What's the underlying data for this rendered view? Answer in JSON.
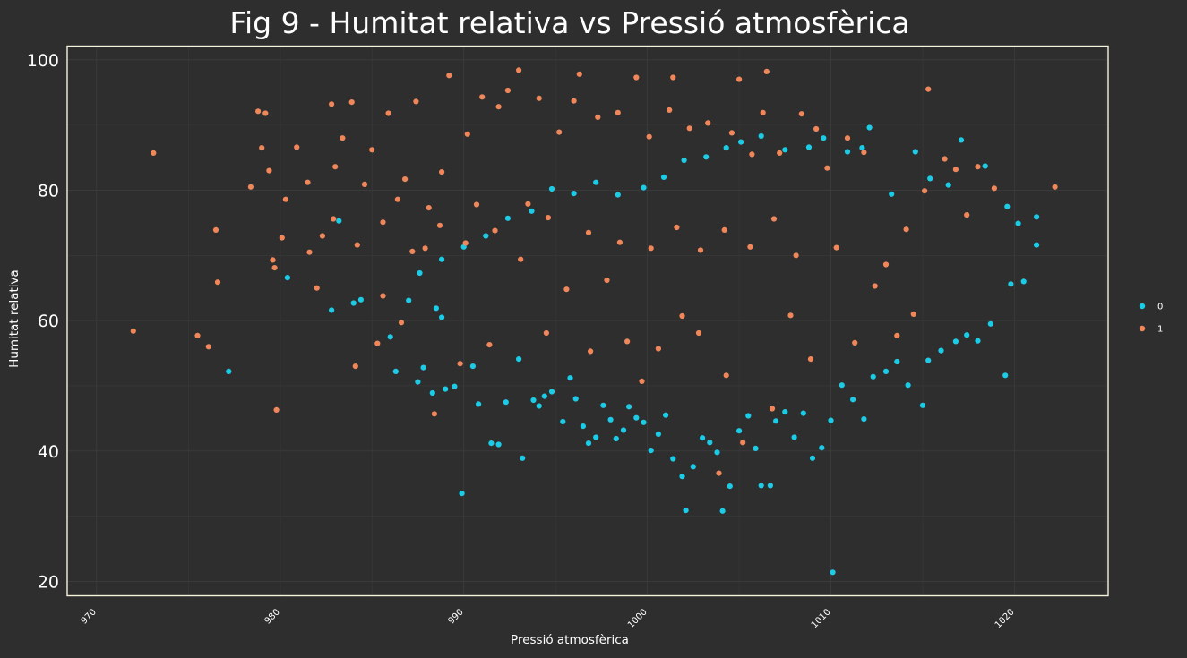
{
  "colors": {
    "background": "#2e2e2e",
    "panel_border": "#f5f3dc",
    "grid": "#3a3a3a",
    "text": "#ffffff",
    "series_0": "#1ccbe6",
    "series_1": "#f0875a"
  },
  "chart_data": {
    "type": "scatter",
    "title": "Fig 9 - Humitat relativa vs Pressió atmosfèrica",
    "xlabel": "Pressió atmosfèrica",
    "ylabel": "Humitat relativa",
    "xlim": [
      968.4,
      1025.1
    ],
    "ylim": [
      17.8,
      102.1
    ],
    "x_ticks": [
      970,
      980,
      990,
      1000,
      1010,
      1020
    ],
    "y_ticks": [
      20,
      40,
      60,
      80,
      100
    ],
    "grid": true,
    "legend_position": "right",
    "series": [
      {
        "name": "0",
        "color": "#1ccbe6",
        "points": [
          [
            977.2,
            52.2
          ],
          [
            980.4,
            66.6
          ],
          [
            982.8,
            61.6
          ],
          [
            983.2,
            75.3
          ],
          [
            984.0,
            62.7
          ],
          [
            984.4,
            63.2
          ],
          [
            986.0,
            57.5
          ],
          [
            986.3,
            52.2
          ],
          [
            987.0,
            63.1
          ],
          [
            987.5,
            50.6
          ],
          [
            987.8,
            52.8
          ],
          [
            988.3,
            48.9
          ],
          [
            988.5,
            61.9
          ],
          [
            988.8,
            60.5
          ],
          [
            989.0,
            49.5
          ],
          [
            989.5,
            49.9
          ],
          [
            989.9,
            33.5
          ],
          [
            990.5,
            53.0
          ],
          [
            990.8,
            47.2
          ],
          [
            991.5,
            41.2
          ],
          [
            991.9,
            41.0
          ],
          [
            992.3,
            47.5
          ],
          [
            993.0,
            54.1
          ],
          [
            993.2,
            38.9
          ],
          [
            993.8,
            47.8
          ],
          [
            994.1,
            46.9
          ],
          [
            994.4,
            48.4
          ],
          [
            994.8,
            49.1
          ],
          [
            995.4,
            44.5
          ],
          [
            995.8,
            51.2
          ],
          [
            996.1,
            48.0
          ],
          [
            996.5,
            43.8
          ],
          [
            996.8,
            41.2
          ],
          [
            997.2,
            42.1
          ],
          [
            997.6,
            47.0
          ],
          [
            998.0,
            44.8
          ],
          [
            998.3,
            41.9
          ],
          [
            998.7,
            43.2
          ],
          [
            999.0,
            46.8
          ],
          [
            999.4,
            45.1
          ],
          [
            999.8,
            44.4
          ],
          [
            1000.2,
            40.1
          ],
          [
            1000.6,
            42.6
          ],
          [
            1001.0,
            45.5
          ],
          [
            1001.4,
            38.8
          ],
          [
            1001.9,
            36.1
          ],
          [
            1002.1,
            30.9
          ],
          [
            1002.5,
            37.6
          ],
          [
            1003.0,
            42.0
          ],
          [
            1003.4,
            41.3
          ],
          [
            1003.8,
            39.8
          ],
          [
            1004.1,
            30.8
          ],
          [
            1004.5,
            34.6
          ],
          [
            1005.0,
            43.1
          ],
          [
            1005.5,
            45.4
          ],
          [
            1005.9,
            40.4
          ],
          [
            1006.2,
            34.7
          ],
          [
            1006.7,
            34.7
          ],
          [
            1007.0,
            44.6
          ],
          [
            1007.5,
            46.0
          ],
          [
            1008.0,
            42.1
          ],
          [
            1008.5,
            45.8
          ],
          [
            1009.0,
            38.9
          ],
          [
            1009.5,
            40.5
          ],
          [
            1010.0,
            44.7
          ],
          [
            1010.1,
            21.4
          ],
          [
            1010.6,
            50.1
          ],
          [
            1011.2,
            47.9
          ],
          [
            1011.8,
            44.9
          ],
          [
            1012.3,
            51.4
          ],
          [
            1013.0,
            52.2
          ],
          [
            1013.6,
            53.7
          ],
          [
            1014.2,
            50.1
          ],
          [
            1015.0,
            47.0
          ],
          [
            1015.3,
            53.9
          ],
          [
            1016.0,
            55.4
          ],
          [
            1016.8,
            56.8
          ],
          [
            1017.4,
            57.8
          ],
          [
            1018.0,
            56.9
          ],
          [
            1018.7,
            59.5
          ],
          [
            1019.5,
            51.6
          ],
          [
            1019.8,
            65.6
          ],
          [
            1020.5,
            66.0
          ],
          [
            1021.2,
            75.9
          ],
          [
            1021.2,
            71.6
          ],
          [
            1020.2,
            74.9
          ],
          [
            1019.6,
            77.5
          ],
          [
            1018.4,
            83.7
          ],
          [
            1017.1,
            87.7
          ],
          [
            1016.4,
            80.8
          ],
          [
            1015.4,
            81.8
          ],
          [
            1014.6,
            85.9
          ],
          [
            1013.3,
            79.4
          ],
          [
            1012.1,
            89.6
          ],
          [
            1011.7,
            86.5
          ],
          [
            1010.9,
            85.9
          ],
          [
            1009.6,
            88.0
          ],
          [
            1008.8,
            86.6
          ],
          [
            1007.5,
            86.2
          ],
          [
            1006.2,
            88.3
          ],
          [
            1005.1,
            87.4
          ],
          [
            1004.3,
            86.5
          ],
          [
            1003.2,
            85.1
          ],
          [
            1002.0,
            84.6
          ],
          [
            1000.9,
            82.0
          ],
          [
            999.8,
            80.4
          ],
          [
            998.4,
            79.3
          ],
          [
            997.2,
            81.2
          ],
          [
            996.0,
            79.5
          ],
          [
            994.8,
            80.2
          ],
          [
            993.7,
            76.8
          ],
          [
            992.4,
            75.7
          ],
          [
            991.2,
            73.0
          ],
          [
            990.0,
            71.3
          ],
          [
            988.8,
            69.4
          ],
          [
            987.6,
            67.3
          ]
        ]
      },
      {
        "name": "1",
        "color": "#f0875a",
        "points": [
          [
            972.0,
            58.4
          ],
          [
            973.1,
            85.7
          ],
          [
            975.5,
            57.7
          ],
          [
            976.1,
            56.0
          ],
          [
            976.5,
            73.9
          ],
          [
            976.6,
            65.9
          ],
          [
            978.4,
            80.5
          ],
          [
            978.8,
            92.1
          ],
          [
            979.0,
            86.5
          ],
          [
            979.2,
            91.8
          ],
          [
            979.4,
            83.0
          ],
          [
            979.6,
            69.3
          ],
          [
            979.7,
            68.1
          ],
          [
            979.8,
            46.3
          ],
          [
            980.1,
            72.7
          ],
          [
            980.3,
            78.6
          ],
          [
            980.9,
            86.6
          ],
          [
            981.5,
            81.2
          ],
          [
            982.0,
            65.0
          ],
          [
            982.3,
            73.0
          ],
          [
            982.8,
            93.2
          ],
          [
            983.0,
            83.6
          ],
          [
            983.4,
            88.0
          ],
          [
            983.9,
            93.5
          ],
          [
            984.1,
            53.0
          ],
          [
            984.6,
            80.9
          ],
          [
            985.0,
            86.2
          ],
          [
            985.3,
            56.5
          ],
          [
            985.6,
            63.8
          ],
          [
            985.9,
            91.8
          ],
          [
            986.4,
            78.6
          ],
          [
            986.6,
            59.7
          ],
          [
            986.8,
            81.7
          ],
          [
            987.4,
            93.6
          ],
          [
            987.9,
            71.1
          ],
          [
            988.1,
            77.3
          ],
          [
            988.4,
            45.7
          ],
          [
            988.8,
            82.8
          ],
          [
            989.2,
            97.6
          ],
          [
            989.8,
            53.4
          ],
          [
            990.2,
            88.6
          ],
          [
            990.7,
            77.8
          ],
          [
            991.0,
            94.3
          ],
          [
            991.4,
            56.3
          ],
          [
            991.9,
            92.8
          ],
          [
            992.4,
            95.3
          ],
          [
            993.0,
            98.4
          ],
          [
            993.5,
            77.9
          ],
          [
            994.1,
            94.1
          ],
          [
            994.5,
            58.1
          ],
          [
            995.2,
            88.9
          ],
          [
            995.6,
            64.8
          ],
          [
            996.0,
            93.7
          ],
          [
            996.3,
            97.8
          ],
          [
            996.9,
            55.3
          ],
          [
            997.3,
            91.2
          ],
          [
            997.8,
            66.2
          ],
          [
            998.4,
            91.9
          ],
          [
            998.9,
            56.8
          ],
          [
            999.4,
            97.3
          ],
          [
            999.7,
            50.7
          ],
          [
            1000.1,
            88.2
          ],
          [
            1000.6,
            55.7
          ],
          [
            1001.2,
            92.3
          ],
          [
            1001.4,
            97.3
          ],
          [
            1001.9,
            60.7
          ],
          [
            1002.3,
            89.5
          ],
          [
            1002.8,
            58.1
          ],
          [
            1003.3,
            90.3
          ],
          [
            1003.9,
            36.6
          ],
          [
            1004.3,
            51.6
          ],
          [
            1004.6,
            88.8
          ],
          [
            1005.0,
            97.0
          ],
          [
            1005.2,
            41.3
          ],
          [
            1005.7,
            85.5
          ],
          [
            1006.3,
            91.9
          ],
          [
            1006.5,
            98.2
          ],
          [
            1006.8,
            46.5
          ],
          [
            1007.2,
            85.7
          ],
          [
            1007.8,
            60.8
          ],
          [
            1008.4,
            91.7
          ],
          [
            1008.9,
            54.1
          ],
          [
            1009.2,
            89.4
          ],
          [
            1009.8,
            83.4
          ],
          [
            1010.3,
            71.2
          ],
          [
            1010.9,
            88.0
          ],
          [
            1011.3,
            56.6
          ],
          [
            1011.8,
            85.8
          ],
          [
            1012.4,
            65.3
          ],
          [
            1013.0,
            68.6
          ],
          [
            1013.6,
            57.7
          ],
          [
            1014.1,
            74.0
          ],
          [
            1014.5,
            61.0
          ],
          [
            1015.1,
            79.9
          ],
          [
            1015.3,
            95.5
          ],
          [
            1016.2,
            84.8
          ],
          [
            1016.8,
            83.2
          ],
          [
            1017.4,
            76.2
          ],
          [
            1018.0,
            83.6
          ],
          [
            1018.9,
            80.3
          ],
          [
            1022.2,
            80.5
          ],
          [
            996.8,
            73.5
          ],
          [
            998.5,
            72.0
          ],
          [
            1000.2,
            71.1
          ],
          [
            1001.6,
            74.3
          ],
          [
            1002.9,
            70.8
          ],
          [
            1004.2,
            73.9
          ],
          [
            1005.6,
            71.3
          ],
          [
            1006.9,
            75.6
          ],
          [
            1008.1,
            70.0
          ],
          [
            994.6,
            75.8
          ],
          [
            993.1,
            69.4
          ],
          [
            991.7,
            73.8
          ],
          [
            990.1,
            71.9
          ],
          [
            988.7,
            74.6
          ],
          [
            987.2,
            70.6
          ],
          [
            985.6,
            75.1
          ],
          [
            984.2,
            71.6
          ],
          [
            982.9,
            75.6
          ],
          [
            981.6,
            70.5
          ]
        ]
      }
    ]
  }
}
